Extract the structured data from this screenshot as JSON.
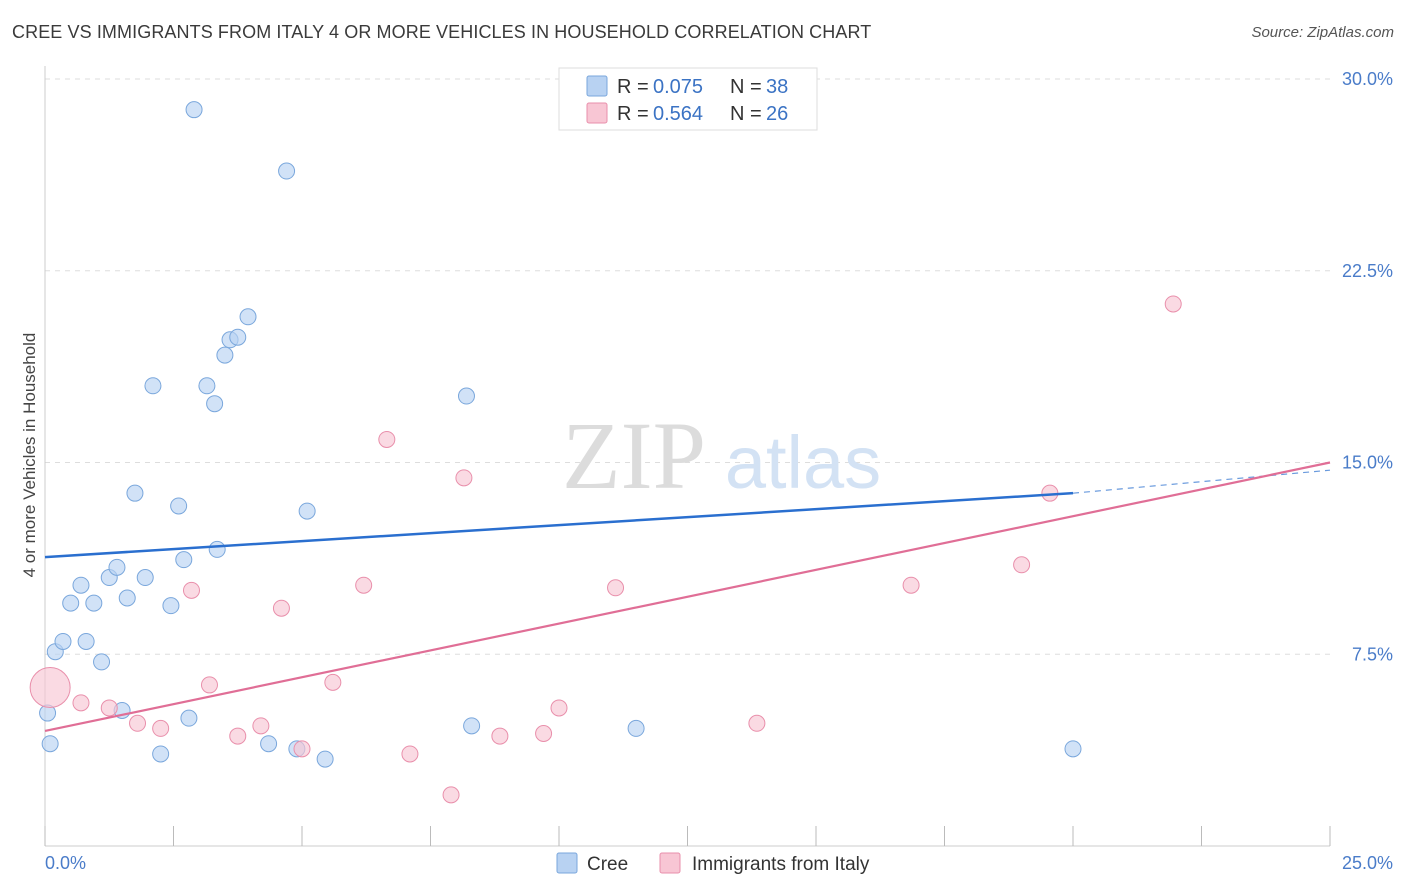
{
  "header": {
    "title": "CREE VS IMMIGRANTS FROM ITALY 4 OR MORE VEHICLES IN HOUSEHOLD CORRELATION CHART",
    "source": "Source: ZipAtlas.com"
  },
  "watermark": {
    "zip": "ZIP",
    "atlas": "atlas"
  },
  "legend": {
    "r_label": "R =",
    "n_label": "N =",
    "rows": [
      {
        "r": "0.075",
        "n": "38"
      },
      {
        "r": "0.564",
        "n": "26"
      }
    ]
  },
  "colors": {
    "cree_fill": "#b8d2f2",
    "cree_stroke": "#7aa7dc",
    "cree_line": "#2a6fcf",
    "italy_fill": "#f8c6d4",
    "italy_stroke": "#e98fab",
    "italy_line": "#e06e96",
    "tick_text": "#4a7cc9",
    "grid": "#dddddd"
  },
  "chart_data": {
    "type": "scatter",
    "title": "CREE VS IMMIGRANTS FROM ITALY 4 OR MORE VEHICLES IN HOUSEHOLD CORRELATION CHART",
    "xlabel": "",
    "ylabel": "4 or more Vehicles in Household",
    "xlim": [
      0,
      25
    ],
    "ylim": [
      0,
      30
    ],
    "x_tick_labels": [
      "0.0%",
      "25.0%"
    ],
    "y_ticks": [
      7.5,
      15.0,
      22.5,
      30.0
    ],
    "y_tick_labels": [
      "7.5%",
      "15.0%",
      "22.5%",
      "30.0%"
    ],
    "grid": true,
    "legend_position": "top-center",
    "series": [
      {
        "name": "Cree",
        "r": 0.075,
        "n": 38,
        "trend": {
          "x": [
            0,
            20.0
          ],
          "y": [
            11.3,
            13.8
          ]
        },
        "trend_dashed": {
          "x": [
            20.0,
            25.0
          ],
          "y": [
            13.8,
            14.7
          ]
        },
        "points": [
          {
            "x": 0.05,
            "y": 5.2,
            "big": false
          },
          {
            "x": 0.2,
            "y": 7.6,
            "big": false
          },
          {
            "x": 0.35,
            "y": 8.0,
            "big": false
          },
          {
            "x": 0.5,
            "y": 9.5,
            "big": false
          },
          {
            "x": 0.7,
            "y": 10.2,
            "big": false
          },
          {
            "x": 0.8,
            "y": 8.0,
            "big": false
          },
          {
            "x": 0.95,
            "y": 9.5,
            "big": false
          },
          {
            "x": 1.1,
            "y": 7.2,
            "big": false
          },
          {
            "x": 1.25,
            "y": 10.5,
            "big": false
          },
          {
            "x": 1.4,
            "y": 10.9,
            "big": false
          },
          {
            "x": 1.5,
            "y": 5.3,
            "big": false
          },
          {
            "x": 1.6,
            "y": 9.7,
            "big": false
          },
          {
            "x": 1.75,
            "y": 13.8,
            "big": false
          },
          {
            "x": 1.95,
            "y": 10.5,
            "big": false
          },
          {
            "x": 2.1,
            "y": 18.0,
            "big": false
          },
          {
            "x": 2.25,
            "y": 3.6,
            "big": false
          },
          {
            "x": 2.45,
            "y": 9.4,
            "big": false
          },
          {
            "x": 2.6,
            "y": 13.3,
            "big": false
          },
          {
            "x": 2.7,
            "y": 11.2,
            "big": false
          },
          {
            "x": 2.8,
            "y": 5.0,
            "big": false
          },
          {
            "x": 2.9,
            "y": 28.8,
            "big": false
          },
          {
            "x": 3.15,
            "y": 18.0,
            "big": false
          },
          {
            "x": 3.3,
            "y": 17.3,
            "big": false
          },
          {
            "x": 3.35,
            "y": 11.6,
            "big": false
          },
          {
            "x": 3.5,
            "y": 19.2,
            "big": false
          },
          {
            "x": 3.6,
            "y": 19.8,
            "big": false
          },
          {
            "x": 3.75,
            "y": 19.9,
            "big": false
          },
          {
            "x": 3.95,
            "y": 20.7,
            "big": false
          },
          {
            "x": 4.35,
            "y": 4.0,
            "big": false
          },
          {
            "x": 4.7,
            "y": 26.4,
            "big": false
          },
          {
            "x": 4.9,
            "y": 3.8,
            "big": false
          },
          {
            "x": 5.1,
            "y": 13.1,
            "big": false
          },
          {
            "x": 5.45,
            "y": 3.4,
            "big": false
          },
          {
            "x": 8.2,
            "y": 17.6,
            "big": false
          },
          {
            "x": 8.3,
            "y": 4.7,
            "big": false
          },
          {
            "x": 11.5,
            "y": 4.6,
            "big": false
          },
          {
            "x": 20.0,
            "y": 3.8,
            "big": false
          },
          {
            "x": 0.1,
            "y": 4.0,
            "big": false
          }
        ]
      },
      {
        "name": "Immigrants from Italy",
        "r": 0.564,
        "n": 26,
        "trend": {
          "x": [
            0,
            25.0
          ],
          "y": [
            4.5,
            15.0
          ]
        },
        "points": [
          {
            "x": 0.1,
            "y": 6.2,
            "big": true
          },
          {
            "x": 0.7,
            "y": 5.6,
            "big": false
          },
          {
            "x": 1.25,
            "y": 5.4,
            "big": false
          },
          {
            "x": 1.8,
            "y": 4.8,
            "big": false
          },
          {
            "x": 2.25,
            "y": 4.6,
            "big": false
          },
          {
            "x": 2.85,
            "y": 10.0,
            "big": false
          },
          {
            "x": 3.2,
            "y": 6.3,
            "big": false
          },
          {
            "x": 3.75,
            "y": 4.3,
            "big": false
          },
          {
            "x": 4.2,
            "y": 4.7,
            "big": false
          },
          {
            "x": 4.6,
            "y": 9.3,
            "big": false
          },
          {
            "x": 5.0,
            "y": 3.8,
            "big": false
          },
          {
            "x": 5.6,
            "y": 6.4,
            "big": false
          },
          {
            "x": 6.2,
            "y": 10.2,
            "big": false
          },
          {
            "x": 6.65,
            "y": 15.9,
            "big": false
          },
          {
            "x": 7.1,
            "y": 3.6,
            "big": false
          },
          {
            "x": 7.9,
            "y": 2.0,
            "big": false
          },
          {
            "x": 8.15,
            "y": 14.4,
            "big": false
          },
          {
            "x": 8.85,
            "y": 4.3,
            "big": false
          },
          {
            "x": 9.7,
            "y": 4.4,
            "big": false
          },
          {
            "x": 10.0,
            "y": 5.4,
            "big": false
          },
          {
            "x": 11.1,
            "y": 10.1,
            "big": false
          },
          {
            "x": 13.85,
            "y": 4.8,
            "big": false
          },
          {
            "x": 16.85,
            "y": 10.2,
            "big": false
          },
          {
            "x": 19.0,
            "y": 11.0,
            "big": false
          },
          {
            "x": 19.55,
            "y": 13.8,
            "big": false
          },
          {
            "x": 21.95,
            "y": 21.2,
            "big": false
          }
        ]
      }
    ]
  }
}
